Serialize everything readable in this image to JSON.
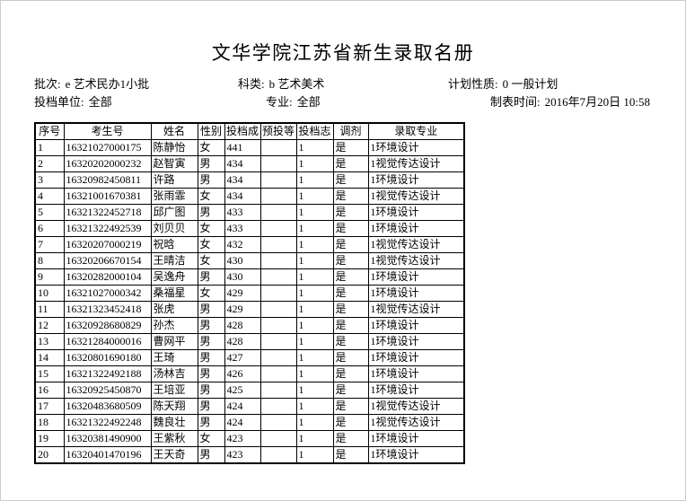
{
  "page": {
    "title": "文华学院江苏省新生录取名册"
  },
  "meta": {
    "batch": {
      "label": "批次:",
      "value": "e 艺术民办1小批"
    },
    "category": {
      "label": "科类:",
      "value": "b 艺术美术"
    },
    "plan_type": {
      "label": "计划性质:",
      "value": "0 一般计划"
    },
    "file_unit": {
      "label": "投档单位:",
      "value": "全部"
    },
    "major": {
      "label": "专业:",
      "value": "全部"
    },
    "report_time": {
      "label": "制表时间:",
      "value": "2016年7月20日 10:58"
    }
  },
  "table": {
    "headers": [
      "序号",
      "考生号",
      "姓名",
      "性别",
      "投档成",
      "预投等",
      "投档志",
      "调剂",
      "录取专业"
    ],
    "header_keys": [
      "seq",
      "exam-no",
      "name",
      "gender",
      "score",
      "pre-rank",
      "volunteer",
      "adjust",
      "admitted-major"
    ],
    "rows": [
      [
        "1",
        "16321027000175",
        "陈静怡",
        "女",
        "441",
        "",
        "1",
        "是",
        "1环境设计"
      ],
      [
        "2",
        "16320202000232",
        "赵智寅",
        "男",
        "434",
        "",
        "1",
        "是",
        "1视觉传达设计"
      ],
      [
        "3",
        "16320982450811",
        "许路",
        "男",
        "434",
        "",
        "1",
        "是",
        "1环境设计"
      ],
      [
        "4",
        "16321001670381",
        "张雨霏",
        "女",
        "434",
        "",
        "1",
        "是",
        "1视觉传达设计"
      ],
      [
        "5",
        "16321322452718",
        "邱广图",
        "男",
        "433",
        "",
        "1",
        "是",
        "1环境设计"
      ],
      [
        "6",
        "16321322492539",
        "刘贝贝",
        "女",
        "433",
        "",
        "1",
        "是",
        "1环境设计"
      ],
      [
        "7",
        "16320207000219",
        "祝晗",
        "女",
        "432",
        "",
        "1",
        "是",
        "1视觉传达设计"
      ],
      [
        "8",
        "16320206670154",
        "王晴洁",
        "女",
        "430",
        "",
        "1",
        "是",
        "1视觉传达设计"
      ],
      [
        "9",
        "16320282000104",
        "吴逸舟",
        "男",
        "430",
        "",
        "1",
        "是",
        "1环境设计"
      ],
      [
        "10",
        "16321027000342",
        "桑福星",
        "女",
        "429",
        "",
        "1",
        "是",
        "1环境设计"
      ],
      [
        "11",
        "16321323452418",
        "张虎",
        "男",
        "429",
        "",
        "1",
        "是",
        "1视觉传达设计"
      ],
      [
        "12",
        "16320928680829",
        "孙杰",
        "男",
        "428",
        "",
        "1",
        "是",
        "1环境设计"
      ],
      [
        "13",
        "16321284000016",
        "曹网平",
        "男",
        "428",
        "",
        "1",
        "是",
        "1环境设计"
      ],
      [
        "14",
        "16320801690180",
        "王琦",
        "男",
        "427",
        "",
        "1",
        "是",
        "1环境设计"
      ],
      [
        "15",
        "16321322492188",
        "汤林吉",
        "男",
        "426",
        "",
        "1",
        "是",
        "1环境设计"
      ],
      [
        "16",
        "16320925450870",
        "王培亚",
        "男",
        "425",
        "",
        "1",
        "是",
        "1环境设计"
      ],
      [
        "17",
        "16320483680509",
        "陈天翔",
        "男",
        "424",
        "",
        "1",
        "是",
        "1视觉传达设计"
      ],
      [
        "18",
        "16321322492248",
        "魏良壮",
        "男",
        "424",
        "",
        "1",
        "是",
        "1视觉传达设计"
      ],
      [
        "19",
        "16320381490900",
        "王紫秋",
        "女",
        "423",
        "",
        "1",
        "是",
        "1环境设计"
      ],
      [
        "20",
        "16320401470196",
        "王天奇",
        "男",
        "423",
        "",
        "1",
        "是",
        "1环境设计"
      ]
    ]
  }
}
